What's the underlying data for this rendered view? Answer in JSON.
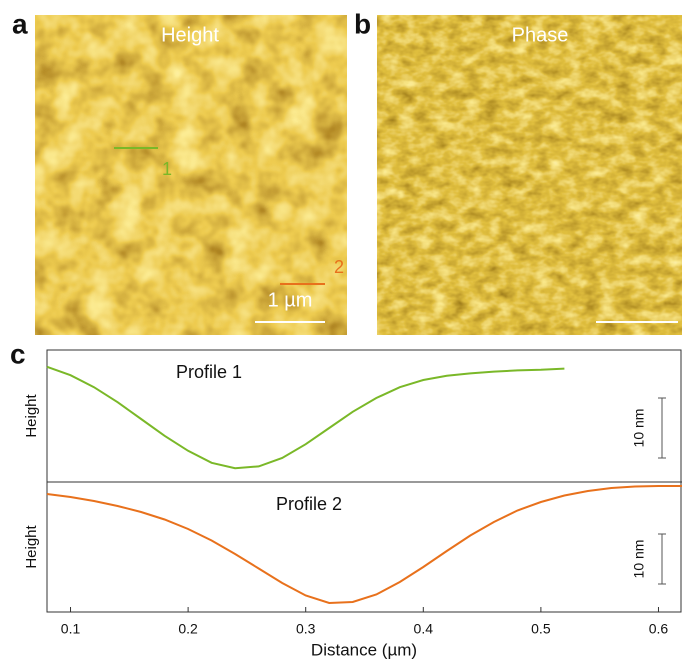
{
  "panels": [
    {
      "label": "a",
      "title": "Height",
      "markers": [
        "1",
        "2"
      ],
      "scale_bar": "1 µm"
    },
    {
      "label": "b",
      "title": "Phase"
    }
  ],
  "chart_data": {
    "type": "line",
    "label": "c",
    "x_label": "Distance (µm)",
    "xlim": [
      0.08,
      0.62
    ],
    "xticks": [
      0.1,
      0.2,
      0.3,
      0.4,
      0.5,
      0.6
    ],
    "series": [
      {
        "name": "Profile 1",
        "color": "#7ab828",
        "y_label": "Height",
        "ylim": [
          0,
          22
        ],
        "scale_bar": {
          "value": 10,
          "label": "10 nm"
        },
        "x": [
          0.08,
          0.1,
          0.12,
          0.14,
          0.16,
          0.18,
          0.2,
          0.22,
          0.24,
          0.26,
          0.28,
          0.3,
          0.32,
          0.34,
          0.36,
          0.38,
          0.4,
          0.42,
          0.44,
          0.46,
          0.48,
          0.5,
          0.52
        ],
        "values": [
          19.2,
          17.8,
          15.8,
          13.3,
          10.5,
          7.7,
          5.2,
          3.2,
          2.3,
          2.6,
          4.0,
          6.3,
          9.0,
          11.7,
          14.0,
          15.8,
          17.0,
          17.7,
          18.1,
          18.4,
          18.6,
          18.7,
          18.9
        ]
      },
      {
        "name": "Profile 2",
        "color": "#e8711c",
        "y_label": "Height",
        "ylim": [
          0,
          26
        ],
        "scale_bar": {
          "value": 10,
          "label": "10 nm"
        },
        "x": [
          0.08,
          0.1,
          0.12,
          0.14,
          0.16,
          0.18,
          0.2,
          0.22,
          0.24,
          0.26,
          0.28,
          0.3,
          0.32,
          0.34,
          0.36,
          0.38,
          0.4,
          0.42,
          0.44,
          0.46,
          0.48,
          0.5,
          0.52,
          0.54,
          0.56,
          0.58,
          0.6,
          0.62
        ],
        "values": [
          23.6,
          23.0,
          22.2,
          21.2,
          20.0,
          18.5,
          16.6,
          14.3,
          11.6,
          8.7,
          5.8,
          3.3,
          1.8,
          2.0,
          3.5,
          6.0,
          9.0,
          12.2,
          15.3,
          18.0,
          20.3,
          22.0,
          23.3,
          24.2,
          24.8,
          25.1,
          25.2,
          25.2
        ]
      }
    ]
  }
}
